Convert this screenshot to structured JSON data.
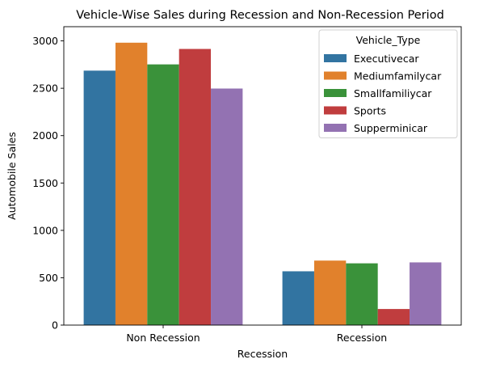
{
  "chart_data": {
    "type": "bar",
    "title": "Vehicle-Wise Sales during Recession and Non-Recession Period",
    "xlabel": "Recession",
    "ylabel": "Automobile Sales",
    "categories": [
      "Non Recession",
      "Recession"
    ],
    "ylim": [
      0,
      3150
    ],
    "yticks": [
      0,
      500,
      1000,
      1500,
      2000,
      2500,
      3000
    ],
    "grid": false,
    "legend": {
      "title": "Vehicle_Type",
      "placement": "top-right"
    },
    "series": [
      {
        "name": "Executivecar",
        "color": "#3274a1",
        "values": [
          2686,
          568
        ]
      },
      {
        "name": "Mediumfamilycar",
        "color": "#e1812c",
        "values": [
          2981,
          681
        ]
      },
      {
        "name": "Smallfamiliycar",
        "color": "#3a923a",
        "values": [
          2752,
          652
        ]
      },
      {
        "name": "Sports",
        "color": "#c03d3e",
        "values": [
          2915,
          170
        ]
      },
      {
        "name": "Supperminicar",
        "color": "#9372b2",
        "values": [
          2497,
          662
        ]
      }
    ]
  }
}
